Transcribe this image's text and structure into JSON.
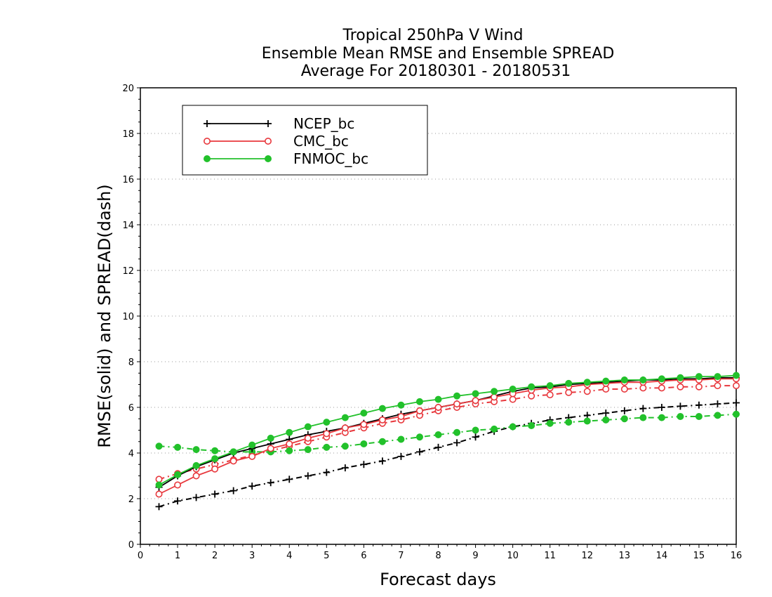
{
  "chart_data": {
    "type": "line",
    "title_lines": [
      "Tropical 250hPa V Wind",
      "Ensemble Mean RMSE and Ensemble SPREAD",
      "Average For 20180301 - 20180531"
    ],
    "xlabel": "Forecast days",
    "ylabel": "RMSE(solid) and SPREAD(dash)",
    "xlim": [
      0,
      16
    ],
    "ylim": [
      0,
      20
    ],
    "xticks": [
      "0",
      "1",
      "2",
      "3",
      "4",
      "5",
      "6",
      "7",
      "8",
      "9",
      "10",
      "11",
      "12",
      "13",
      "14",
      "15",
      "16"
    ],
    "yticks": [
      "0",
      "2",
      "4",
      "6",
      "8",
      "10",
      "12",
      "14",
      "16",
      "18",
      "20"
    ],
    "grid": "horizontal dotted",
    "legend_position": "top-left",
    "x": [
      0.5,
      1,
      1.5,
      2,
      2.5,
      3,
      3.5,
      4,
      4.5,
      5,
      5.5,
      6,
      6.5,
      7,
      7.5,
      8,
      8.5,
      9,
      9.5,
      10,
      10.5,
      11,
      11.5,
      12,
      12.5,
      13,
      13.5,
      14,
      14.5,
      15,
      15.5,
      16
    ],
    "series": [
      {
        "name": "NCEP_bc",
        "color": "#000000",
        "marker": "plus",
        "rmse": [
          2.5,
          3.0,
          3.4,
          3.7,
          4.0,
          4.2,
          4.4,
          4.6,
          4.8,
          4.95,
          5.1,
          5.3,
          5.5,
          5.7,
          5.85,
          6.0,
          6.15,
          6.3,
          6.5,
          6.7,
          6.85,
          6.9,
          7.0,
          7.05,
          7.1,
          7.15,
          7.2,
          7.2,
          7.25,
          7.25,
          7.3,
          7.3
        ],
        "spread": [
          1.65,
          1.9,
          2.05,
          2.2,
          2.35,
          2.55,
          2.7,
          2.85,
          3.0,
          3.15,
          3.35,
          3.5,
          3.65,
          3.85,
          4.05,
          4.25,
          4.45,
          4.7,
          4.95,
          5.15,
          5.3,
          5.45,
          5.55,
          5.65,
          5.75,
          5.85,
          5.95,
          6.0,
          6.05,
          6.1,
          6.15,
          6.2
        ]
      },
      {
        "name": "CMC_bc",
        "color": "#e8383d",
        "marker": "open-circle",
        "rmse": [
          2.2,
          2.6,
          3.0,
          3.3,
          3.65,
          3.85,
          4.2,
          4.4,
          4.65,
          4.85,
          5.1,
          5.25,
          5.45,
          5.6,
          5.85,
          6.0,
          6.15,
          6.3,
          6.45,
          6.6,
          6.75,
          6.85,
          6.9,
          7.0,
          7.05,
          7.1,
          7.1,
          7.15,
          7.2,
          7.2,
          7.25,
          7.25
        ],
        "spread": [
          2.85,
          3.1,
          3.3,
          3.5,
          3.7,
          3.9,
          4.1,
          4.3,
          4.5,
          4.7,
          4.9,
          5.1,
          5.3,
          5.45,
          5.65,
          5.85,
          6.0,
          6.15,
          6.25,
          6.35,
          6.5,
          6.55,
          6.65,
          6.7,
          6.8,
          6.8,
          6.85,
          6.85,
          6.9,
          6.9,
          6.95,
          6.95
        ]
      },
      {
        "name": "FNMOC_bc",
        "color": "#22c12b",
        "marker": "filled-circle",
        "rmse": [
          2.6,
          3.05,
          3.45,
          3.75,
          4.05,
          4.35,
          4.65,
          4.9,
          5.15,
          5.35,
          5.55,
          5.75,
          5.95,
          6.1,
          6.25,
          6.35,
          6.5,
          6.6,
          6.7,
          6.8,
          6.9,
          6.95,
          7.05,
          7.1,
          7.15,
          7.2,
          7.2,
          7.25,
          7.3,
          7.35,
          7.35,
          7.4
        ],
        "spread": [
          4.3,
          4.25,
          4.15,
          4.1,
          4.05,
          4.05,
          4.05,
          4.1,
          4.15,
          4.25,
          4.3,
          4.4,
          4.5,
          4.6,
          4.7,
          4.8,
          4.9,
          5.0,
          5.05,
          5.15,
          5.2,
          5.3,
          5.35,
          5.4,
          5.45,
          5.5,
          5.55,
          5.55,
          5.6,
          5.6,
          5.65,
          5.7
        ]
      }
    ]
  }
}
